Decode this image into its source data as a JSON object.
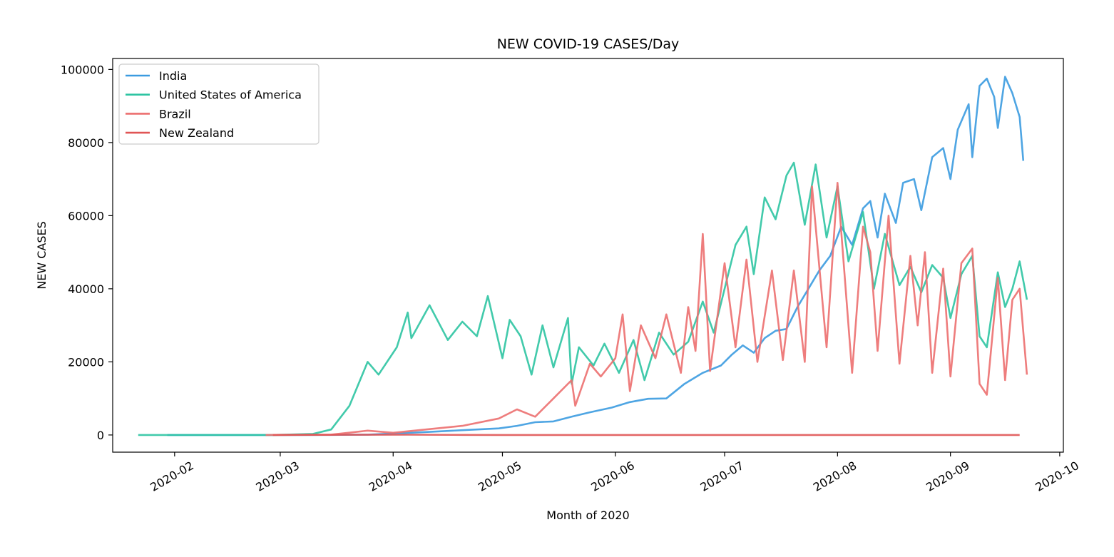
{
  "chart_data": {
    "type": "line",
    "title": "NEW COVID-19 CASES/Day",
    "xlabel": "Month of 2020",
    "ylabel": "NEW CASES",
    "xlim": [
      "2020-01-15",
      "2020-10-02"
    ],
    "ylim": [
      -4700,
      103000
    ],
    "x_ticks": [
      "2020-02",
      "2020-03",
      "2020-04",
      "2020-05",
      "2020-06",
      "2020-07",
      "2020-08",
      "2020-09",
      "2020-10"
    ],
    "x_tick_dates": [
      "2020-02-01",
      "2020-03-01",
      "2020-04-01",
      "2020-05-01",
      "2020-06-01",
      "2020-07-01",
      "2020-08-01",
      "2020-09-01",
      "2020-10-01"
    ],
    "y_ticks": [
      0,
      20000,
      40000,
      60000,
      80000,
      100000
    ],
    "y_tick_labels": [
      "0",
      "20000",
      "40000",
      "60000",
      "80000",
      "100000"
    ],
    "grid": false,
    "legend_position": "top-left",
    "series": [
      {
        "name": "India",
        "color": "#3b9be0",
        "points": [
          [
            "2020-01-30",
            0
          ],
          [
            "2020-03-01",
            0
          ],
          [
            "2020-03-15",
            20
          ],
          [
            "2020-03-25",
            100
          ],
          [
            "2020-04-01",
            400
          ],
          [
            "2020-04-10",
            800
          ],
          [
            "2020-04-20",
            1300
          ],
          [
            "2020-04-30",
            1800
          ],
          [
            "2020-05-05",
            2500
          ],
          [
            "2020-05-10",
            3500
          ],
          [
            "2020-05-15",
            3700
          ],
          [
            "2020-05-20",
            5000
          ],
          [
            "2020-05-25",
            6200
          ],
          [
            "2020-05-31",
            7500
          ],
          [
            "2020-06-05",
            9000
          ],
          [
            "2020-06-10",
            9900
          ],
          [
            "2020-06-15",
            10000
          ],
          [
            "2020-06-20",
            14000
          ],
          [
            "2020-06-25",
            17000
          ],
          [
            "2020-06-30",
            19000
          ],
          [
            "2020-07-03",
            22000
          ],
          [
            "2020-07-06",
            24500
          ],
          [
            "2020-07-09",
            22500
          ],
          [
            "2020-07-12",
            26500
          ],
          [
            "2020-07-15",
            28500
          ],
          [
            "2020-07-18",
            29000
          ],
          [
            "2020-07-21",
            35000
          ],
          [
            "2020-07-24",
            40000
          ],
          [
            "2020-07-27",
            45000
          ],
          [
            "2020-07-30",
            49000
          ],
          [
            "2020-08-02",
            57000
          ],
          [
            "2020-08-05",
            52000
          ],
          [
            "2020-08-08",
            62000
          ],
          [
            "2020-08-10",
            64000
          ],
          [
            "2020-08-12",
            54000
          ],
          [
            "2020-08-14",
            66000
          ],
          [
            "2020-08-17",
            58000
          ],
          [
            "2020-08-19",
            69000
          ],
          [
            "2020-08-22",
            70000
          ],
          [
            "2020-08-24",
            61500
          ],
          [
            "2020-08-27",
            76000
          ],
          [
            "2020-08-30",
            78500
          ],
          [
            "2020-09-01",
            70000
          ],
          [
            "2020-09-03",
            83500
          ],
          [
            "2020-09-06",
            90500
          ],
          [
            "2020-09-07",
            76000
          ],
          [
            "2020-09-09",
            95500
          ],
          [
            "2020-09-11",
            97500
          ],
          [
            "2020-09-13",
            92500
          ],
          [
            "2020-09-14",
            84000
          ],
          [
            "2020-09-16",
            98000
          ],
          [
            "2020-09-18",
            93500
          ],
          [
            "2020-09-20",
            87000
          ],
          [
            "2020-09-21",
            75000
          ]
        ]
      },
      {
        "name": "United States of America",
        "color": "#2ec4a2",
        "points": [
          [
            "2020-01-22",
            0
          ],
          [
            "2020-02-28",
            0
          ],
          [
            "2020-03-10",
            300
          ],
          [
            "2020-03-15",
            1500
          ],
          [
            "2020-03-20",
            8000
          ],
          [
            "2020-03-25",
            20000
          ],
          [
            "2020-03-28",
            16500
          ],
          [
            "2020-04-02",
            24000
          ],
          [
            "2020-04-05",
            33500
          ],
          [
            "2020-04-06",
            26500
          ],
          [
            "2020-04-11",
            35500
          ],
          [
            "2020-04-16",
            26000
          ],
          [
            "2020-04-20",
            31000
          ],
          [
            "2020-04-24",
            27000
          ],
          [
            "2020-04-27",
            38000
          ],
          [
            "2020-05-01",
            21000
          ],
          [
            "2020-05-03",
            31500
          ],
          [
            "2020-05-06",
            27000
          ],
          [
            "2020-05-09",
            16500
          ],
          [
            "2020-05-12",
            30000
          ],
          [
            "2020-05-15",
            18500
          ],
          [
            "2020-05-19",
            32000
          ],
          [
            "2020-05-20",
            14000
          ],
          [
            "2020-05-22",
            24000
          ],
          [
            "2020-05-26",
            19000
          ],
          [
            "2020-05-29",
            25000
          ],
          [
            "2020-06-02",
            17000
          ],
          [
            "2020-06-06",
            26000
          ],
          [
            "2020-06-09",
            15000
          ],
          [
            "2020-06-13",
            28000
          ],
          [
            "2020-06-17",
            22000
          ],
          [
            "2020-06-21",
            25500
          ],
          [
            "2020-06-25",
            36500
          ],
          [
            "2020-06-28",
            28000
          ],
          [
            "2020-07-02",
            44000
          ],
          [
            "2020-07-04",
            52000
          ],
          [
            "2020-07-07",
            57000
          ],
          [
            "2020-07-09",
            44000
          ],
          [
            "2020-07-12",
            65000
          ],
          [
            "2020-07-15",
            59000
          ],
          [
            "2020-07-18",
            71000
          ],
          [
            "2020-07-20",
            74500
          ],
          [
            "2020-07-23",
            57500
          ],
          [
            "2020-07-26",
            74000
          ],
          [
            "2020-07-29",
            54000
          ],
          [
            "2020-08-01",
            68000
          ],
          [
            "2020-08-04",
            47500
          ],
          [
            "2020-08-08",
            61000
          ],
          [
            "2020-08-11",
            40000
          ],
          [
            "2020-08-14",
            55000
          ],
          [
            "2020-08-18",
            41000
          ],
          [
            "2020-08-21",
            46000
          ],
          [
            "2020-08-24",
            39000
          ],
          [
            "2020-08-27",
            46500
          ],
          [
            "2020-08-30",
            43000
          ],
          [
            "2020-09-01",
            32000
          ],
          [
            "2020-09-04",
            44000
          ],
          [
            "2020-09-07",
            49000
          ],
          [
            "2020-09-09",
            27000
          ],
          [
            "2020-09-11",
            24000
          ],
          [
            "2020-09-14",
            44500
          ],
          [
            "2020-09-16",
            35000
          ],
          [
            "2020-09-18",
            40000
          ],
          [
            "2020-09-20",
            47500
          ],
          [
            "2020-09-22",
            37000
          ]
        ]
      },
      {
        "name": "Brazil",
        "color": "#ec6f6f",
        "points": [
          [
            "2020-02-26",
            0
          ],
          [
            "2020-03-15",
            100
          ],
          [
            "2020-03-25",
            1200
          ],
          [
            "2020-04-01",
            600
          ],
          [
            "2020-04-10",
            1500
          ],
          [
            "2020-04-20",
            2500
          ],
          [
            "2020-04-30",
            4500
          ],
          [
            "2020-05-05",
            7000
          ],
          [
            "2020-05-10",
            5000
          ],
          [
            "2020-05-15",
            10000
          ],
          [
            "2020-05-20",
            15000
          ],
          [
            "2020-05-21",
            8000
          ],
          [
            "2020-05-25",
            19500
          ],
          [
            "2020-05-28",
            16000
          ],
          [
            "2020-06-01",
            21000
          ],
          [
            "2020-06-03",
            33000
          ],
          [
            "2020-06-05",
            12000
          ],
          [
            "2020-06-08",
            30000
          ],
          [
            "2020-06-12",
            21000
          ],
          [
            "2020-06-15",
            33000
          ],
          [
            "2020-06-19",
            17000
          ],
          [
            "2020-06-21",
            35000
          ],
          [
            "2020-06-23",
            23000
          ],
          [
            "2020-06-25",
            55000
          ],
          [
            "2020-06-27",
            17500
          ],
          [
            "2020-07-01",
            47000
          ],
          [
            "2020-07-04",
            24000
          ],
          [
            "2020-07-07",
            48000
          ],
          [
            "2020-07-10",
            20000
          ],
          [
            "2020-07-14",
            45000
          ],
          [
            "2020-07-17",
            20500
          ],
          [
            "2020-07-20",
            45000
          ],
          [
            "2020-07-23",
            20000
          ],
          [
            "2020-07-25",
            68000
          ],
          [
            "2020-07-29",
            24000
          ],
          [
            "2020-08-01",
            69000
          ],
          [
            "2020-08-05",
            17000
          ],
          [
            "2020-08-08",
            57000
          ],
          [
            "2020-08-10",
            50000
          ],
          [
            "2020-08-12",
            23000
          ],
          [
            "2020-08-15",
            60000
          ],
          [
            "2020-08-18",
            19500
          ],
          [
            "2020-08-21",
            49000
          ],
          [
            "2020-08-23",
            30000
          ],
          [
            "2020-08-25",
            50000
          ],
          [
            "2020-08-27",
            17000
          ],
          [
            "2020-08-30",
            45500
          ],
          [
            "2020-09-01",
            16000
          ],
          [
            "2020-09-04",
            47000
          ],
          [
            "2020-09-07",
            51000
          ],
          [
            "2020-09-09",
            14000
          ],
          [
            "2020-09-11",
            11000
          ],
          [
            "2020-09-14",
            43000
          ],
          [
            "2020-09-16",
            15000
          ],
          [
            "2020-09-18",
            37000
          ],
          [
            "2020-09-20",
            40000
          ],
          [
            "2020-09-22",
            16500
          ]
        ]
      },
      {
        "name": "New Zealand",
        "color": "#e05555",
        "points": [
          [
            "2020-02-28",
            0
          ],
          [
            "2020-03-20",
            60
          ],
          [
            "2020-04-05",
            80
          ],
          [
            "2020-04-20",
            20
          ],
          [
            "2020-05-01",
            0
          ],
          [
            "2020-09-20",
            0
          ]
        ]
      }
    ]
  }
}
